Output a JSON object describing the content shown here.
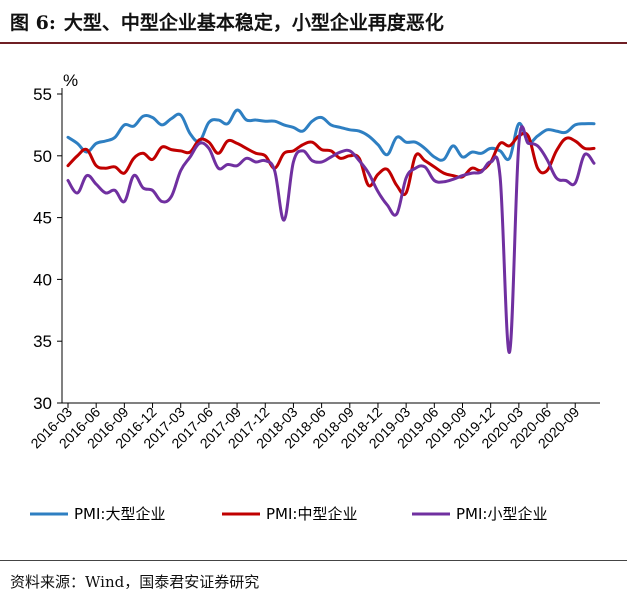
{
  "figure": {
    "label": "图 6:",
    "title": "大型、中型企业基本稳定，小型企业再度恶化"
  },
  "source": "资料来源：Wind，国泰君安证券研究",
  "colors": {
    "large": "#2e7fc2",
    "medium": "#c00000",
    "small": "#7030a0",
    "title_rule": "#6f1f24"
  },
  "chart_data": {
    "type": "line",
    "ylabel": "%",
    "ylim": [
      30,
      55
    ],
    "yticks": [
      30,
      35,
      40,
      45,
      50,
      55
    ],
    "grid": false,
    "legend_position": "bottom",
    "xtick_labels": [
      "2016-03",
      "2016-06",
      "2016-09",
      "2016-12",
      "2017-03",
      "2017-06",
      "2017-09",
      "2017-12",
      "2018-03",
      "2018-06",
      "2018-09",
      "2018-12",
      "2019-03",
      "2019-06",
      "2019-09",
      "2019-12",
      "2020-03",
      "2020-06",
      "2020-09"
    ],
    "x": [
      "2016-03",
      "2016-04",
      "2016-05",
      "2016-06",
      "2016-07",
      "2016-08",
      "2016-09",
      "2016-10",
      "2016-11",
      "2016-12",
      "2017-01",
      "2017-02",
      "2017-03",
      "2017-04",
      "2017-05",
      "2017-06",
      "2017-07",
      "2017-08",
      "2017-09",
      "2017-10",
      "2017-11",
      "2017-12",
      "2018-01",
      "2018-02",
      "2018-03",
      "2018-04",
      "2018-05",
      "2018-06",
      "2018-07",
      "2018-08",
      "2018-09",
      "2018-10",
      "2018-11",
      "2018-12",
      "2019-01",
      "2019-02",
      "2019-03",
      "2019-04",
      "2019-05",
      "2019-06",
      "2019-07",
      "2019-08",
      "2019-09",
      "2019-10",
      "2019-11",
      "2019-12",
      "2020-01",
      "2020-02",
      "2020-03",
      "2020-04",
      "2020-05",
      "2020-06",
      "2020-07",
      "2020-08",
      "2020-09",
      "2020-10",
      "2020-11"
    ],
    "series": [
      {
        "name": "PMI:大型企业",
        "color_key": "large",
        "values": [
          51.5,
          51.0,
          50.3,
          51.0,
          51.2,
          51.5,
          52.5,
          52.4,
          53.2,
          53.1,
          52.5,
          53.0,
          53.3,
          51.8,
          51.2,
          52.7,
          52.9,
          52.6,
          53.7,
          52.9,
          52.9,
          52.8,
          52.8,
          52.5,
          52.3,
          52.0,
          52.8,
          53.1,
          52.5,
          52.3,
          52.1,
          52.0,
          51.6,
          50.9,
          50.1,
          51.5,
          51.1,
          51.1,
          50.6,
          49.9,
          49.7,
          50.8,
          49.9,
          50.3,
          50.2,
          50.6,
          50.4,
          49.8,
          52.6,
          51.1,
          51.6,
          52.1,
          52.0,
          51.9,
          52.5,
          52.6,
          52.6
        ]
      },
      {
        "name": "PMI:中型企业",
        "color_key": "medium",
        "values": [
          49.2,
          50.0,
          50.5,
          49.2,
          49.0,
          49.1,
          48.6,
          49.8,
          50.2,
          49.7,
          50.7,
          50.5,
          50.4,
          50.3,
          51.3,
          51.1,
          50.2,
          51.2,
          51.0,
          50.6,
          50.2,
          50.0,
          49.0,
          50.2,
          50.4,
          50.9,
          51.1,
          50.5,
          50.4,
          49.8,
          50.0,
          49.8,
          47.6,
          48.5,
          48.9,
          47.6,
          47.0,
          50.0,
          49.6,
          49.1,
          48.6,
          48.4,
          48.3,
          49.0,
          48.8,
          49.5,
          51.0,
          50.8,
          51.6,
          51.6,
          49.0,
          48.8,
          50.4,
          51.4,
          51.2,
          50.6,
          50.6
        ]
      },
      {
        "name": "PMI:小型企业",
        "color_key": "small",
        "values": [
          48.0,
          47.0,
          48.4,
          47.7,
          47.0,
          47.2,
          46.3,
          48.4,
          47.4,
          47.2,
          46.3,
          46.7,
          48.8,
          49.9,
          51.0,
          50.6,
          49.0,
          49.3,
          49.2,
          49.8,
          49.5,
          49.6,
          48.8,
          44.8,
          49.5,
          50.4,
          49.6,
          49.5,
          49.9,
          50.3,
          50.4,
          49.6,
          48.6,
          47.1,
          46.0,
          45.3,
          48.2,
          49.0,
          49.1,
          48.0,
          47.9,
          48.1,
          48.4,
          48.6,
          48.7,
          49.5,
          48.3,
          34.1,
          51.0,
          51.0,
          50.8,
          49.7,
          48.2,
          48.0,
          47.8,
          50.1,
          49.4
        ]
      }
    ]
  }
}
